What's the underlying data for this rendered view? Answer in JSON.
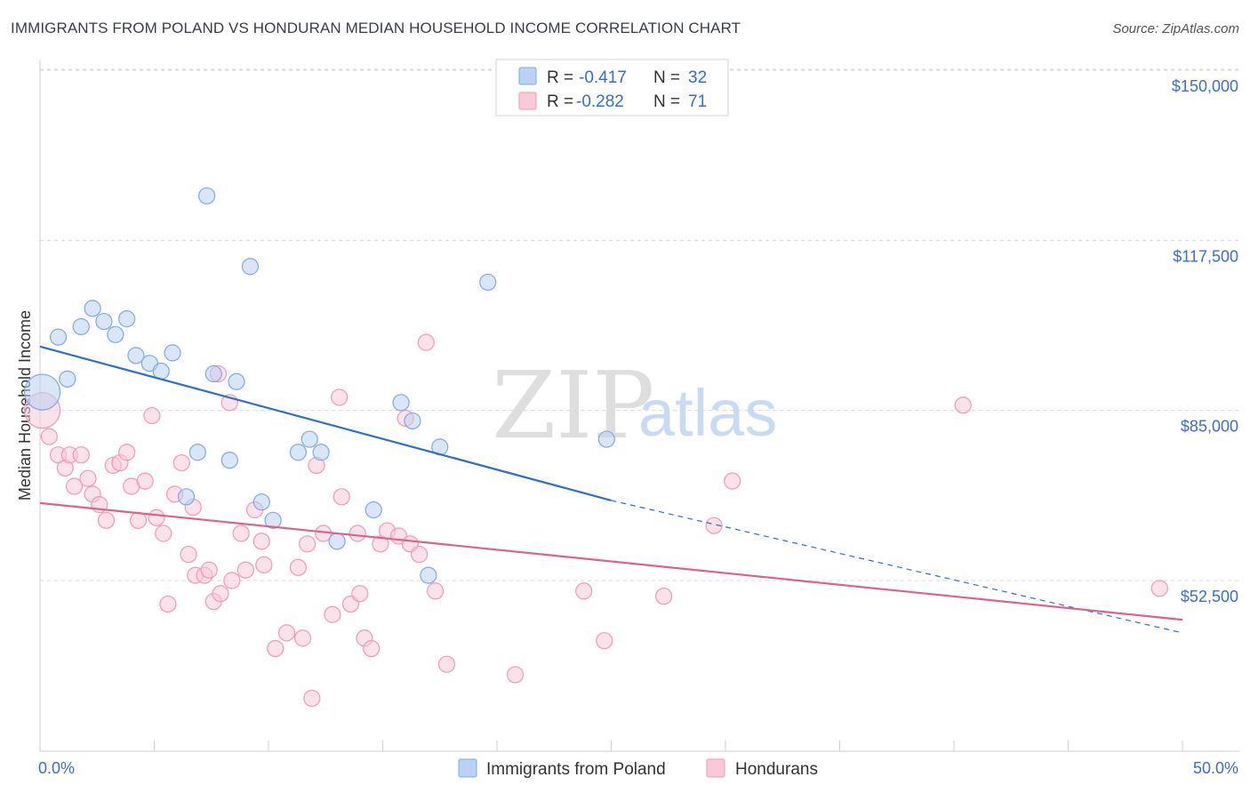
{
  "title": "IMMIGRANTS FROM POLAND VS HONDURAN MEDIAN HOUSEHOLD INCOME CORRELATION CHART",
  "source": "Source: ZipAtlas.com",
  "watermark": {
    "zip": "ZIP",
    "atlas": "atlas"
  },
  "legend_box": {
    "r_label": "R =",
    "n_label": "N =",
    "rows": [
      {
        "series": "Immigrants from Poland",
        "r": "-0.417",
        "n": "32"
      },
      {
        "series": "Hondurans",
        "r": "-0.282",
        "n": "71"
      }
    ]
  },
  "chart_data": {
    "type": "scatter",
    "title": "IMMIGRANTS FROM POLAND VS HONDURAN MEDIAN HOUSEHOLD INCOME CORRELATION CHART",
    "xlabel": "",
    "ylabel": "Median Household Income",
    "xlim": [
      0,
      50
    ],
    "ylim": [
      20000,
      155000
    ],
    "x_tick_labels": [
      "0.0%",
      "50.0%"
    ],
    "y_ticks": [
      52500,
      85000,
      117500,
      150000
    ],
    "y_tick_labels": [
      "$52,500",
      "$85,000",
      "$117,500",
      "$150,000"
    ],
    "grid": true,
    "legend_position": "bottom",
    "series": [
      {
        "name": "Immigrants from Poland",
        "color": "#7fa9e0",
        "fill": "#b9d2f3",
        "line_color": "#2b6fd3",
        "trend": {
          "x0": 0,
          "y0": 97200,
          "x1": 25,
          "y1": 67800,
          "x_dash_end": 50,
          "y_dash_end": 42500
        },
        "points": [
          {
            "x": 0.1,
            "y": 88500,
            "big": true
          },
          {
            "x": 0.8,
            "y": 99000
          },
          {
            "x": 1.2,
            "y": 91000
          },
          {
            "x": 1.8,
            "y": 101000
          },
          {
            "x": 2.3,
            "y": 104500
          },
          {
            "x": 2.8,
            "y": 102000
          },
          {
            "x": 3.3,
            "y": 99500
          },
          {
            "x": 3.8,
            "y": 102500
          },
          {
            "x": 4.2,
            "y": 95500
          },
          {
            "x": 4.8,
            "y": 94000
          },
          {
            "x": 5.3,
            "y": 92500
          },
          {
            "x": 5.8,
            "y": 96000
          },
          {
            "x": 6.4,
            "y": 68500
          },
          {
            "x": 6.9,
            "y": 77000
          },
          {
            "x": 7.3,
            "y": 126000
          },
          {
            "x": 7.6,
            "y": 92000
          },
          {
            "x": 8.3,
            "y": 75500
          },
          {
            "x": 8.6,
            "y": 90500
          },
          {
            "x": 9.2,
            "y": 112500
          },
          {
            "x": 9.7,
            "y": 67500
          },
          {
            "x": 10.2,
            "y": 64000
          },
          {
            "x": 11.3,
            "y": 77000
          },
          {
            "x": 11.8,
            "y": 79500
          },
          {
            "x": 12.3,
            "y": 77000
          },
          {
            "x": 13.0,
            "y": 60000
          },
          {
            "x": 14.6,
            "y": 66000
          },
          {
            "x": 15.8,
            "y": 86500
          },
          {
            "x": 16.3,
            "y": 83000
          },
          {
            "x": 17.0,
            "y": 53500
          },
          {
            "x": 17.5,
            "y": 78000
          },
          {
            "x": 19.6,
            "y": 109500
          },
          {
            "x": 24.8,
            "y": 79500
          }
        ]
      },
      {
        "name": "Hondurans",
        "color": "#ee9ab6",
        "fill": "#f8c9d8",
        "line_color": "#e0608c",
        "trend": {
          "x0": 0,
          "y0": 67300,
          "x1": 50,
          "y1": 45000
        },
        "points": [
          {
            "x": 0.1,
            "y": 85000,
            "big": true
          },
          {
            "x": 0.4,
            "y": 80000
          },
          {
            "x": 0.8,
            "y": 76500
          },
          {
            "x": 1.1,
            "y": 74000
          },
          {
            "x": 1.3,
            "y": 76500
          },
          {
            "x": 1.5,
            "y": 70500
          },
          {
            "x": 1.8,
            "y": 76500
          },
          {
            "x": 2.1,
            "y": 72000
          },
          {
            "x": 2.3,
            "y": 69000
          },
          {
            "x": 2.6,
            "y": 67000
          },
          {
            "x": 2.9,
            "y": 64000
          },
          {
            "x": 3.2,
            "y": 74500
          },
          {
            "x": 3.5,
            "y": 75000
          },
          {
            "x": 3.8,
            "y": 77000
          },
          {
            "x": 4.0,
            "y": 70500
          },
          {
            "x": 4.3,
            "y": 64000
          },
          {
            "x": 4.6,
            "y": 71500
          },
          {
            "x": 4.9,
            "y": 84000
          },
          {
            "x": 5.1,
            "y": 64500
          },
          {
            "x": 5.4,
            "y": 61500
          },
          {
            "x": 5.6,
            "y": 48000
          },
          {
            "x": 5.9,
            "y": 69000
          },
          {
            "x": 6.2,
            "y": 75000
          },
          {
            "x": 6.5,
            "y": 57500
          },
          {
            "x": 6.7,
            "y": 66500
          },
          {
            "x": 6.8,
            "y": 53500
          },
          {
            "x": 7.2,
            "y": 53500
          },
          {
            "x": 7.4,
            "y": 54500
          },
          {
            "x": 7.6,
            "y": 48500
          },
          {
            "x": 7.8,
            "y": 92000
          },
          {
            "x": 7.9,
            "y": 50000
          },
          {
            "x": 8.3,
            "y": 86500
          },
          {
            "x": 8.4,
            "y": 52500
          },
          {
            "x": 8.8,
            "y": 61500
          },
          {
            "x": 9.0,
            "y": 54500
          },
          {
            "x": 9.4,
            "y": 66000
          },
          {
            "x": 9.7,
            "y": 60000
          },
          {
            "x": 9.8,
            "y": 55500
          },
          {
            "x": 10.3,
            "y": 39500
          },
          {
            "x": 10.8,
            "y": 42500
          },
          {
            "x": 11.3,
            "y": 55000
          },
          {
            "x": 11.5,
            "y": 41500
          },
          {
            "x": 11.7,
            "y": 59500
          },
          {
            "x": 11.9,
            "y": 30000
          },
          {
            "x": 12.1,
            "y": 74500
          },
          {
            "x": 12.4,
            "y": 61500
          },
          {
            "x": 12.8,
            "y": 46000
          },
          {
            "x": 13.1,
            "y": 87500
          },
          {
            "x": 13.2,
            "y": 68500
          },
          {
            "x": 13.6,
            "y": 48000
          },
          {
            "x": 13.9,
            "y": 61500
          },
          {
            "x": 14.0,
            "y": 50000
          },
          {
            "x": 14.2,
            "y": 41500
          },
          {
            "x": 14.5,
            "y": 39500
          },
          {
            "x": 14.9,
            "y": 59500
          },
          {
            "x": 15.2,
            "y": 62000
          },
          {
            "x": 15.7,
            "y": 61000
          },
          {
            "x": 16.0,
            "y": 83500
          },
          {
            "x": 16.2,
            "y": 59500
          },
          {
            "x": 16.6,
            "y": 57500
          },
          {
            "x": 16.9,
            "y": 98000
          },
          {
            "x": 17.3,
            "y": 50500
          },
          {
            "x": 17.8,
            "y": 36500
          },
          {
            "x": 20.8,
            "y": 34500
          },
          {
            "x": 23.8,
            "y": 50500
          },
          {
            "x": 24.7,
            "y": 41000
          },
          {
            "x": 27.3,
            "y": 49500
          },
          {
            "x": 29.5,
            "y": 63000
          },
          {
            "x": 30.3,
            "y": 71500
          },
          {
            "x": 40.4,
            "y": 86000
          },
          {
            "x": 49.0,
            "y": 51000
          }
        ]
      }
    ]
  }
}
